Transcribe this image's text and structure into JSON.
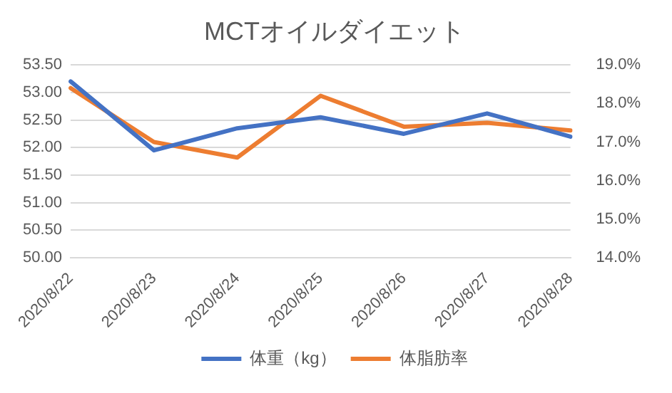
{
  "chart_data": {
    "type": "line",
    "title": "MCTオイルダイエット",
    "categories": [
      "2020/8/22",
      "2020/8/23",
      "2020/8/24",
      "2020/8/25",
      "2020/8/26",
      "2020/8/27",
      "2020/8/28"
    ],
    "series": [
      {
        "name": "体重（kg）",
        "color": "#4472c4",
        "values": [
          53.2,
          51.95,
          52.35,
          52.55,
          52.25,
          52.62,
          52.2
        ]
      },
      {
        "name": "体脂肪率",
        "color": "#ed7d31",
        "axis": "y2",
        "values": [
          18.4,
          17.0,
          16.6,
          18.2,
          17.4,
          17.5,
          17.3
        ]
      }
    ],
    "ylim": [
      50,
      53.5
    ],
    "yticks": [
      {
        "value": 50,
        "label": "50.00"
      },
      {
        "value": 50.5,
        "label": "50.50"
      },
      {
        "value": 51,
        "label": "51.00"
      },
      {
        "value": 51.5,
        "label": "51.50"
      },
      {
        "value": 52,
        "label": "52.00"
      },
      {
        "value": 52.5,
        "label": "52.50"
      },
      {
        "value": 53,
        "label": "53.00"
      },
      {
        "value": 53.5,
        "label": "53.50"
      }
    ],
    "y2lim": [
      14,
      19
    ],
    "y2ticks": [
      {
        "value": 14,
        "label": "14.0%"
      },
      {
        "value": 15,
        "label": "15.0%"
      },
      {
        "value": 16,
        "label": "16.0%"
      },
      {
        "value": 17,
        "label": "17.0%"
      },
      {
        "value": 18,
        "label": "18.0%"
      },
      {
        "value": 19,
        "label": "19.0%"
      }
    ],
    "grid": "y",
    "legend": "bottom",
    "marker": "none",
    "line_style": "solid"
  }
}
